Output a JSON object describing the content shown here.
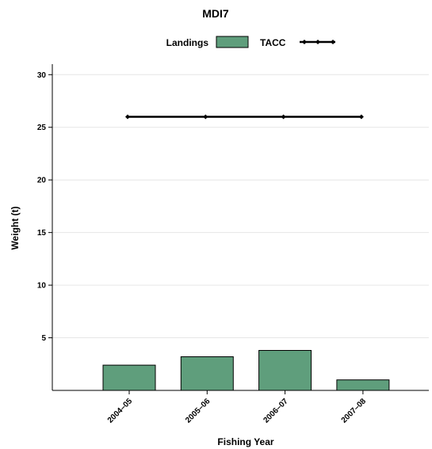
{
  "chart_data": {
    "type": "bar",
    "title": "MDI7",
    "xlabel": "Fishing Year",
    "ylabel": "Weight (t)",
    "categories": [
      "2004–05",
      "2005–06",
      "2006–07",
      "2007–08"
    ],
    "ylim": [
      0,
      31
    ],
    "yticks": [
      5,
      10,
      15,
      20,
      25,
      30
    ],
    "grid": true,
    "legend_position": "top-center",
    "series": [
      {
        "name": "Landings",
        "type": "bar",
        "color": "#5f9e7c",
        "values": [
          2.4,
          3.2,
          3.8,
          1.0
        ]
      },
      {
        "name": "TACC",
        "type": "line",
        "color": "#000000",
        "values": [
          26,
          26,
          26,
          26
        ]
      }
    ]
  }
}
